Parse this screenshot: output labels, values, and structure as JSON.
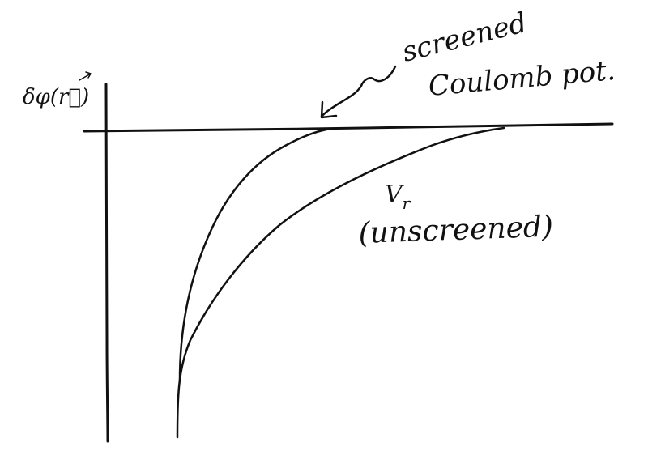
{
  "colors": {
    "ink": "#111111",
    "background": "#ffffff"
  },
  "labels": {
    "y_axis": "δφ(r⃗)",
    "curve_screened_line1": "screened",
    "curve_screened_line2": "Coulomb pot.",
    "curve_unscreened_name": "V",
    "curve_unscreened_subscript": "r",
    "curve_unscreened_note": "(unscreened)"
  }
}
